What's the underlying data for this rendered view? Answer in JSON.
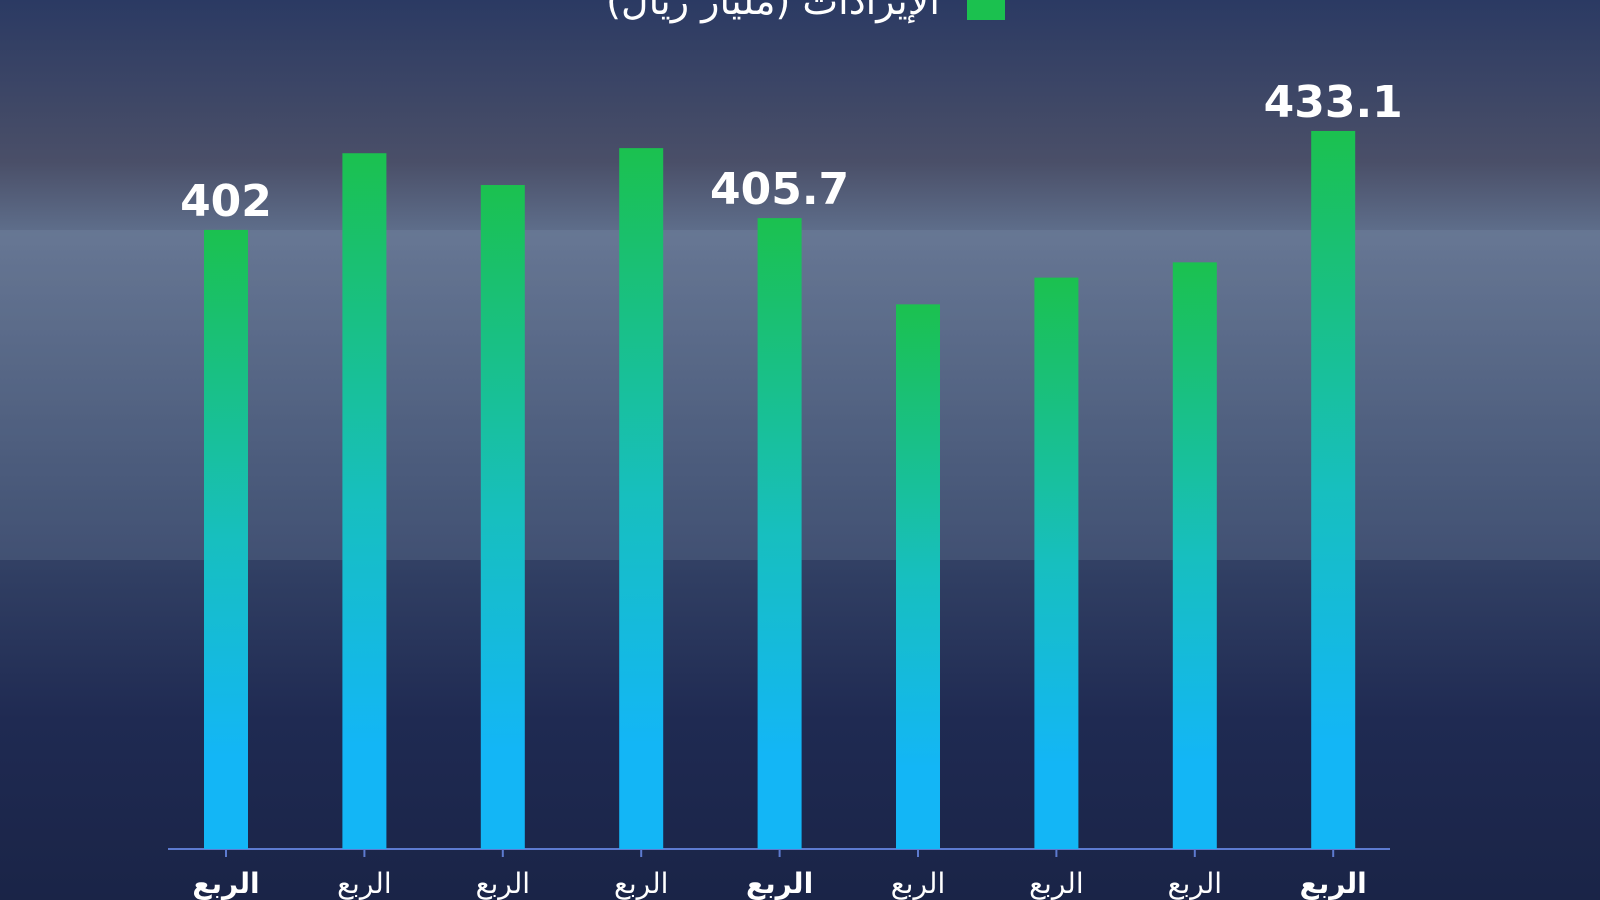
{
  "chart_data": {
    "type": "bar",
    "categories": [
      "الربع",
      "الربع",
      "الربع",
      "الربع",
      "الربع",
      "الربع",
      "الربع",
      "الربع",
      "الربع"
    ],
    "series": [
      {
        "name": "الإيرادات (مليار ريال)",
        "color": "#1bc14f",
        "values": [
          402,
          426.1,
          416.1,
          427.7,
          405.7,
          378.6,
          387,
          391.8,
          433.1
        ],
        "value_labels": [
          "402",
          null,
          null,
          null,
          "405.7",
          null,
          null,
          null,
          "433.1"
        ]
      }
    ],
    "ylim": [
      207.4,
      440
    ]
  }
}
